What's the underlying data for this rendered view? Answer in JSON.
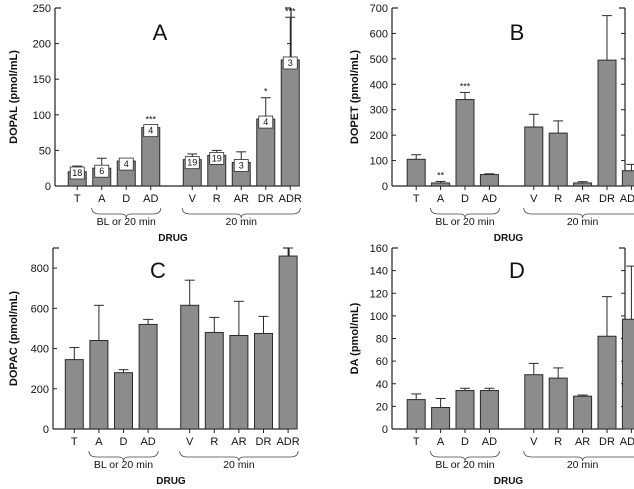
{
  "figure": {
    "colors": {
      "bar_fill": "#8c8c8c",
      "bar_stroke": "#2b2b2b",
      "axis": "#222222",
      "box_fill": "#ffffff"
    }
  },
  "chart_data": [
    {
      "type": "bar",
      "panel": "A",
      "ylabel": "DOPAL (pmol/mL)",
      "xlabel": "DRUG",
      "ylim": [
        0,
        250
      ],
      "yticks": [
        0,
        50,
        100,
        150,
        200,
        250
      ],
      "tick_labels": [
        "0",
        "50",
        "100",
        "150",
        "200",
        "250"
      ],
      "categories": [
        "T",
        "A",
        "D",
        "AD",
        "V",
        "R",
        "AR",
        "DR",
        "ADR"
      ],
      "values": [
        20,
        25,
        35,
        82,
        37,
        43,
        33,
        94,
        177
      ],
      "errors": [
        8,
        14,
        3,
        3,
        8,
        7,
        15,
        30,
        60
      ],
      "n": [
        "18",
        "6",
        "4",
        "4",
        "19",
        "19",
        "3",
        "4",
        "3"
      ],
      "significance": [
        "",
        "",
        "",
        "***",
        "",
        "",
        "",
        "*",
        "***"
      ],
      "groups": [
        {
          "label": "BL or 20 min",
          "from": 1,
          "to": 3
        },
        {
          "label": "20 min",
          "from": 4,
          "to": 8
        }
      ]
    },
    {
      "type": "bar",
      "panel": "B",
      "ylabel": "DOPET (pmol/mL)",
      "xlabel": "DRUG",
      "ylim": [
        0,
        700
      ],
      "yticks": [
        0,
        100,
        200,
        300,
        400,
        500,
        600,
        700
      ],
      "tick_labels": [
        "0",
        "100",
        "200",
        "300",
        "400",
        "500",
        "600",
        "700"
      ],
      "categories": [
        "T",
        "A",
        "D",
        "AD",
        "V",
        "R",
        "AR",
        "DR",
        "ADR"
      ],
      "values": [
        105,
        12,
        340,
        45,
        232,
        208,
        12,
        495,
        60
      ],
      "errors": [
        18,
        6,
        28,
        3,
        50,
        48,
        5,
        175,
        25
      ],
      "n": [],
      "significance": [
        "",
        "**",
        "***",
        "",
        "",
        "",
        "",
        "",
        ""
      ],
      "groups": [
        {
          "label": "BL or 20 min",
          "from": 1,
          "to": 3
        },
        {
          "label": "20 min",
          "from": 4,
          "to": 8
        }
      ]
    },
    {
      "type": "bar",
      "panel": "C",
      "ylabel": "DOPAC (pmol/mL)",
      "xlabel": "DRUG",
      "ylim": [
        0,
        900
      ],
      "yticks": [
        0,
        200,
        400,
        600,
        800
      ],
      "tick_labels": [
        "0",
        "200",
        "400",
        "600",
        "800"
      ],
      "categories": [
        "T",
        "A",
        "D",
        "AD",
        "V",
        "R",
        "AR",
        "DR",
        "ADR"
      ],
      "values": [
        345,
        440,
        280,
        520,
        615,
        480,
        465,
        475,
        860
      ],
      "errors": [
        60,
        175,
        15,
        25,
        125,
        75,
        170,
        85,
        40
      ],
      "n": [],
      "significance": [
        "",
        "",
        "",
        "",
        "",
        "",
        "",
        "",
        ""
      ],
      "groups": [
        {
          "label": "BL or 20 min",
          "from": 1,
          "to": 3
        },
        {
          "label": "20 min",
          "from": 4,
          "to": 8
        }
      ]
    },
    {
      "type": "bar",
      "panel": "D",
      "ylabel": "DA (pmol/mL)",
      "xlabel": "DRUG",
      "ylim": [
        0,
        160
      ],
      "yticks": [
        0,
        20,
        40,
        60,
        80,
        100,
        120,
        140,
        160
      ],
      "tick_labels": [
        "0",
        "20",
        "40",
        "60",
        "80",
        "100",
        "120",
        "140",
        "160"
      ],
      "categories": [
        "T",
        "A",
        "D",
        "AD",
        "V",
        "R",
        "AR",
        "DR",
        "ADR"
      ],
      "values": [
        26,
        19,
        34,
        34,
        48,
        45,
        29,
        82,
        97
      ],
      "errors": [
        5,
        8,
        2,
        2,
        10,
        9,
        1,
        35,
        47
      ],
      "n": [],
      "significance": [
        "",
        "",
        "",
        "",
        "",
        "",
        "",
        "",
        ""
      ],
      "groups": [
        {
          "label": "BL or 20 min",
          "from": 1,
          "to": 3
        },
        {
          "label": "20 min",
          "from": 4,
          "to": 8
        }
      ]
    }
  ]
}
